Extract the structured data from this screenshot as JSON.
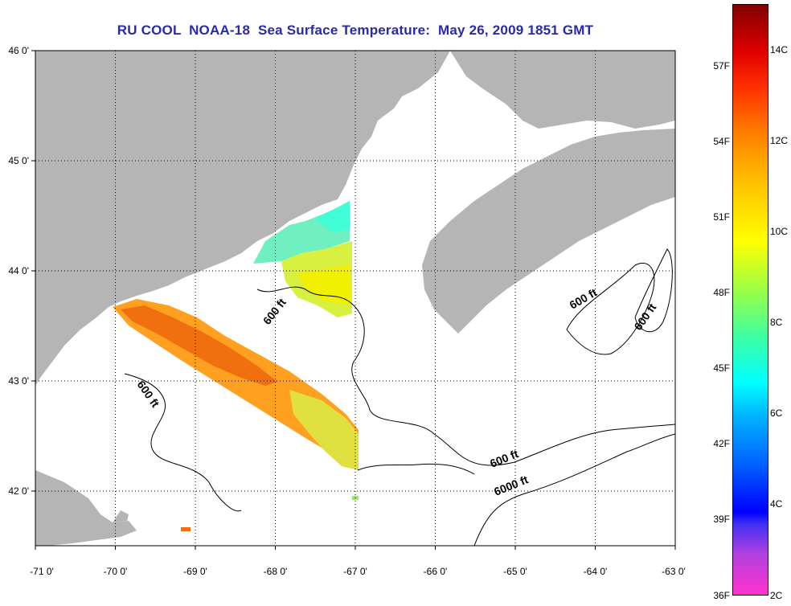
{
  "title": "RU COOL  NOAA-18  Sea Surface Temperature:  May 26, 2009 1851 GMT",
  "map": {
    "lon_range": [
      -71,
      -63
    ],
    "lat_range": [
      41.5,
      46
    ],
    "lon_ticks": [
      "-71 0'",
      "-70 0'",
      "-69 0'",
      "-68 0'",
      "-67 0'",
      "-66 0'",
      "-65 0'",
      "-64 0'",
      "-63 0'"
    ],
    "lat_ticks": [
      "46 0'",
      "45 0'",
      "44 0'",
      "43 0'",
      "42 0'"
    ],
    "land_color": "#b5b5b5",
    "grid": "dotted",
    "contour_labels": [
      {
        "text": "600 ft"
      },
      {
        "text": "600 ft"
      },
      {
        "text": "600 ft"
      },
      {
        "text": "600 ft"
      },
      {
        "text": "600 ft"
      },
      {
        "text": "6000 ft"
      }
    ]
  },
  "colorbar": {
    "celsius_labels": [
      "14C",
      "12C",
      "10C",
      "8C",
      "6C",
      "4C",
      "2C"
    ],
    "fahrenheit_labels": [
      "57F",
      "54F",
      "51F",
      "48F",
      "45F",
      "42F",
      "39F",
      "36F"
    ]
  }
}
